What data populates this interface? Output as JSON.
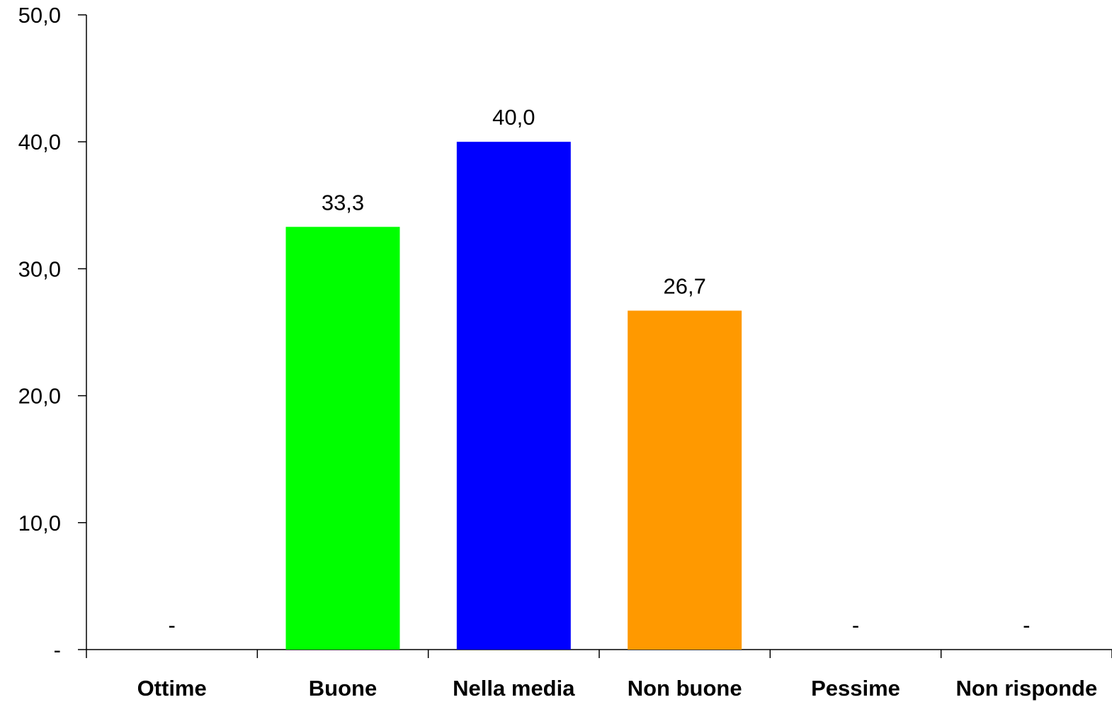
{
  "chart_data": {
    "type": "bar",
    "categories": [
      "Ottime",
      "Buone",
      "Nella media",
      "Non buone",
      "Pessime",
      "Non risponde"
    ],
    "values": [
      0,
      33.3,
      40.0,
      26.7,
      0,
      0
    ],
    "data_labels": [
      "-",
      "33,3",
      "40,0",
      "26,7",
      "-",
      "-"
    ],
    "bar_colors": [
      "#00ff00",
      "#00ff00",
      "#0000ff",
      "#ff9900",
      "#ff0000",
      "#999999"
    ],
    "ylim": [
      0,
      50
    ],
    "yticks": [
      0,
      10,
      20,
      30,
      40,
      50
    ],
    "ytick_labels": [
      "-",
      "10,0",
      "20,0",
      "30,0",
      "40,0",
      "50,0"
    ],
    "grid": false,
    "legend": "none"
  }
}
